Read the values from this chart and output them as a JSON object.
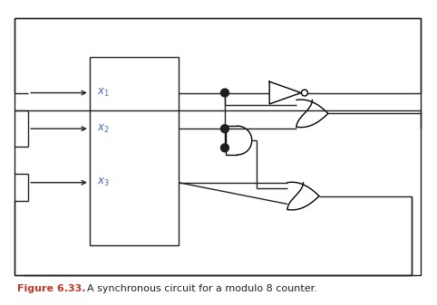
{
  "title": "Figure 6.33.",
  "caption": "  A synchronous circuit for a modulo 8 counter.",
  "title_color": "#c0392b",
  "caption_color": "#231f20",
  "bg_color": "#ffffff",
  "line_color": "#231f20",
  "label_color": "#4169b8",
  "fig_width": 4.82,
  "fig_height": 3.37,
  "dpi": 100
}
